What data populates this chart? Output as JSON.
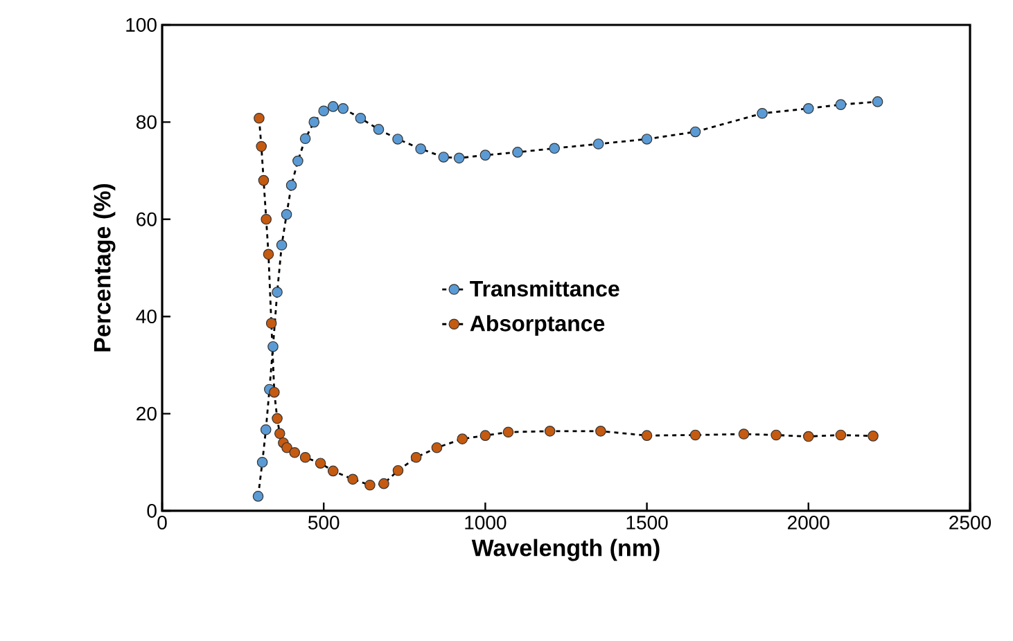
{
  "chart_data": {
    "type": "line",
    "xlabel": "Wavelength (nm)",
    "ylabel": "Percentage (%)",
    "xlim": [
      0,
      2500
    ],
    "ylim": [
      0,
      100
    ],
    "xticks": [
      0,
      500,
      1000,
      1500,
      2000,
      2500
    ],
    "yticks": [
      0,
      20,
      40,
      60,
      80,
      100
    ],
    "grid": false,
    "legend": "right",
    "line_style": "dashed",
    "series": [
      {
        "name": "Transmittance",
        "color": "#5b9bd5",
        "marker": "circle",
        "x": [
          297,
          310,
          321,
          332,
          343,
          356,
          370,
          385,
          400,
          420,
          443,
          470,
          500,
          529,
          560,
          614,
          670,
          729,
          800,
          871,
          919,
          1000,
          1100,
          1214,
          1350,
          1500,
          1650,
          1857,
          2000,
          2100,
          2214
        ],
        "values": [
          3,
          10,
          16.7,
          25,
          33.8,
          45,
          54.7,
          61,
          67,
          72,
          76.6,
          80,
          82.3,
          83.2,
          82.8,
          80.8,
          78.5,
          76.5,
          74.5,
          72.8,
          72.6,
          73.2,
          73.8,
          74.6,
          75.5,
          76.5,
          78,
          81.8,
          82.8,
          83.6,
          84.2
        ]
      },
      {
        "name": "Absorptance",
        "color": "#c55a11",
        "marker": "circle",
        "x": [
          300,
          307,
          314,
          322,
          329,
          338,
          347,
          356,
          364,
          375,
          386,
          410,
          443,
          490,
          529,
          590,
          643,
          686,
          730,
          786,
          850,
          929,
          1000,
          1071,
          1200,
          1357,
          1500,
          1650,
          1800,
          1900,
          2000,
          2100,
          2200
        ],
        "values": [
          80.8,
          75,
          68,
          60,
          52.8,
          38.6,
          24.4,
          19,
          15.9,
          14,
          13,
          12,
          11,
          9.8,
          8.2,
          6.5,
          5.3,
          5.6,
          8.3,
          11,
          13,
          14.8,
          15.5,
          16.2,
          16.4,
          16.4,
          15.5,
          15.6,
          15.8,
          15.6,
          15.3,
          15.6,
          15.4
        ]
      }
    ]
  }
}
